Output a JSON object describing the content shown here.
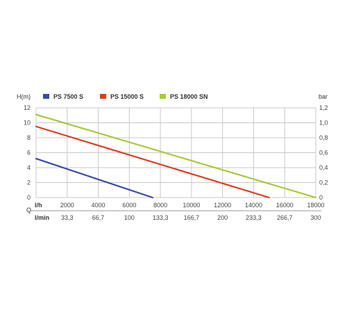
{
  "chart_data": {
    "type": "line",
    "y_left_label": "H(m)",
    "y_right_label": "bar",
    "q_label": "Q",
    "row1_unit": "l/h",
    "row2_unit": "l/min",
    "xlim": [
      0,
      18000
    ],
    "ylim": [
      0,
      12
    ],
    "x_ticks": [
      2000,
      4000,
      6000,
      8000,
      10000,
      12000,
      14000,
      16000,
      18000
    ],
    "x_tick_labels": [
      "2000",
      "4000",
      "6000",
      "8000",
      "10000",
      "12000",
      "14000",
      "16000",
      "18000"
    ],
    "x2_tick_labels": [
      "33,3",
      "66,7",
      "100",
      "133,3",
      "166,7",
      "200",
      "233,3",
      "266,7",
      "300"
    ],
    "y_ticks": [
      0,
      2,
      4,
      6,
      8,
      10,
      12
    ],
    "y_tick_labels": [
      "0",
      "2",
      "4",
      "6",
      "8",
      "10",
      "12"
    ],
    "y_right_tick_labels": [
      "0",
      "0,2",
      "0,4",
      "0,6",
      "0,8",
      "1,0",
      "1,2"
    ],
    "grid": true,
    "legend_position": "top",
    "series": [
      {
        "name": "PS 7500 S",
        "color": "#3d4aa0",
        "x": [
          0,
          7500
        ],
        "y": [
          5.2,
          0
        ]
      },
      {
        "name": "PS 15000 S",
        "color": "#d9401f",
        "x": [
          0,
          15000
        ],
        "y": [
          9.5,
          0
        ]
      },
      {
        "name": "PS 18000 SN",
        "color": "#a8c93a",
        "x": [
          0,
          18000
        ],
        "y": [
          11.1,
          0
        ]
      }
    ]
  }
}
